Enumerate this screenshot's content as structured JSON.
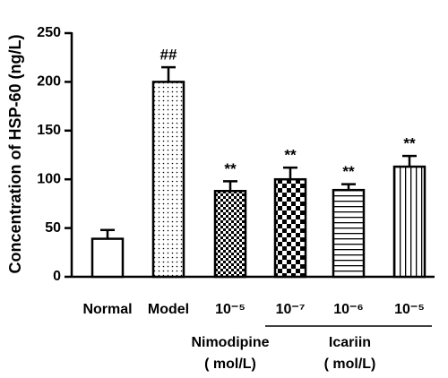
{
  "chart_data": {
    "type": "bar",
    "y_label": "Concentration of HSP-60 (ng/L)",
    "categories": [
      "Normal",
      "Model",
      "10⁻⁵",
      "10⁻⁷",
      "10⁻⁶",
      "10⁻⁵"
    ],
    "values": [
      39,
      200,
      88,
      100,
      89,
      113
    ],
    "errors": [
      9,
      15,
      10,
      12,
      6,
      11
    ],
    "annotations": [
      null,
      "##",
      "**",
      "**",
      "**",
      "**"
    ],
    "patterns": [
      "none",
      "dots",
      "checker-small",
      "checker-large",
      "hlines",
      "vlines"
    ],
    "color": "#000000",
    "groups": [
      {
        "label": "Nimodipine",
        "unit": "( mol/L)",
        "categories": [
          2
        ]
      },
      {
        "label": "Icariin",
        "unit": "( mol/L)",
        "categories": [
          3,
          4,
          5
        ]
      }
    ],
    "ylim": [
      0,
      250
    ],
    "yticks": [
      0,
      50,
      100,
      150,
      200,
      250
    ],
    "grid": false
  }
}
